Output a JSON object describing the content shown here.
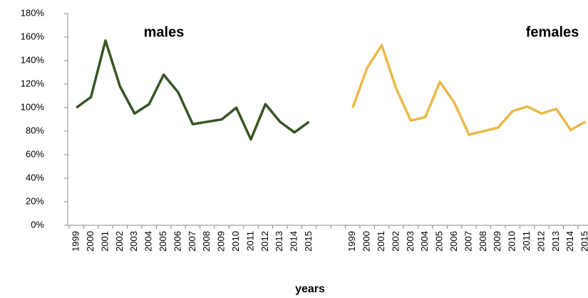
{
  "chart_data": {
    "type": "line",
    "x_label": "years",
    "categories": [
      "1999",
      "2000",
      "2001",
      "2002",
      "2003",
      "2004",
      "2005",
      "2006",
      "2007",
      "2008",
      "2009",
      "2010",
      "2011",
      "2012",
      "2013",
      "2014",
      "2015",
      null,
      null,
      "1999",
      "2000",
      "2001",
      "2002",
      "2003",
      "2004",
      "2005",
      "2006",
      "2007",
      "2008",
      "2009",
      "2010",
      "2011",
      "2012",
      "2013",
      "2014",
      "2015"
    ],
    "series": [
      {
        "name": "males",
        "color": "#375623",
        "values": [
          100,
          109,
          157,
          118,
          95,
          103,
          128,
          113,
          86,
          88,
          90,
          100,
          73,
          103,
          88,
          79,
          88,
          null,
          null,
          null,
          null,
          null,
          null,
          null,
          null,
          null,
          null,
          null,
          null,
          null,
          null,
          null,
          null,
          null,
          null,
          null
        ]
      },
      {
        "name": "females",
        "color": "#e9b949",
        "values": [
          null,
          null,
          null,
          null,
          null,
          null,
          null,
          null,
          null,
          null,
          null,
          null,
          null,
          null,
          null,
          null,
          null,
          null,
          null,
          100,
          134,
          153,
          116,
          89,
          92,
          122,
          104,
          77,
          80,
          83,
          97,
          101,
          95,
          99,
          81,
          88
        ]
      }
    ],
    "ylim": [
      0,
      180
    ],
    "yticks": [
      {
        "value": 0,
        "label": "0%"
      },
      {
        "value": 20,
        "label": "20%"
      },
      {
        "value": 40,
        "label": "40%"
      },
      {
        "value": 60,
        "label": "60%"
      },
      {
        "value": 80,
        "label": "80%"
      },
      {
        "value": 100,
        "label": "100%"
      },
      {
        "value": 120,
        "label": "120%"
      },
      {
        "value": 140,
        "label": "140%"
      },
      {
        "value": 160,
        "label": "160%"
      },
      {
        "value": 180,
        "label": "180%"
      }
    ]
  }
}
